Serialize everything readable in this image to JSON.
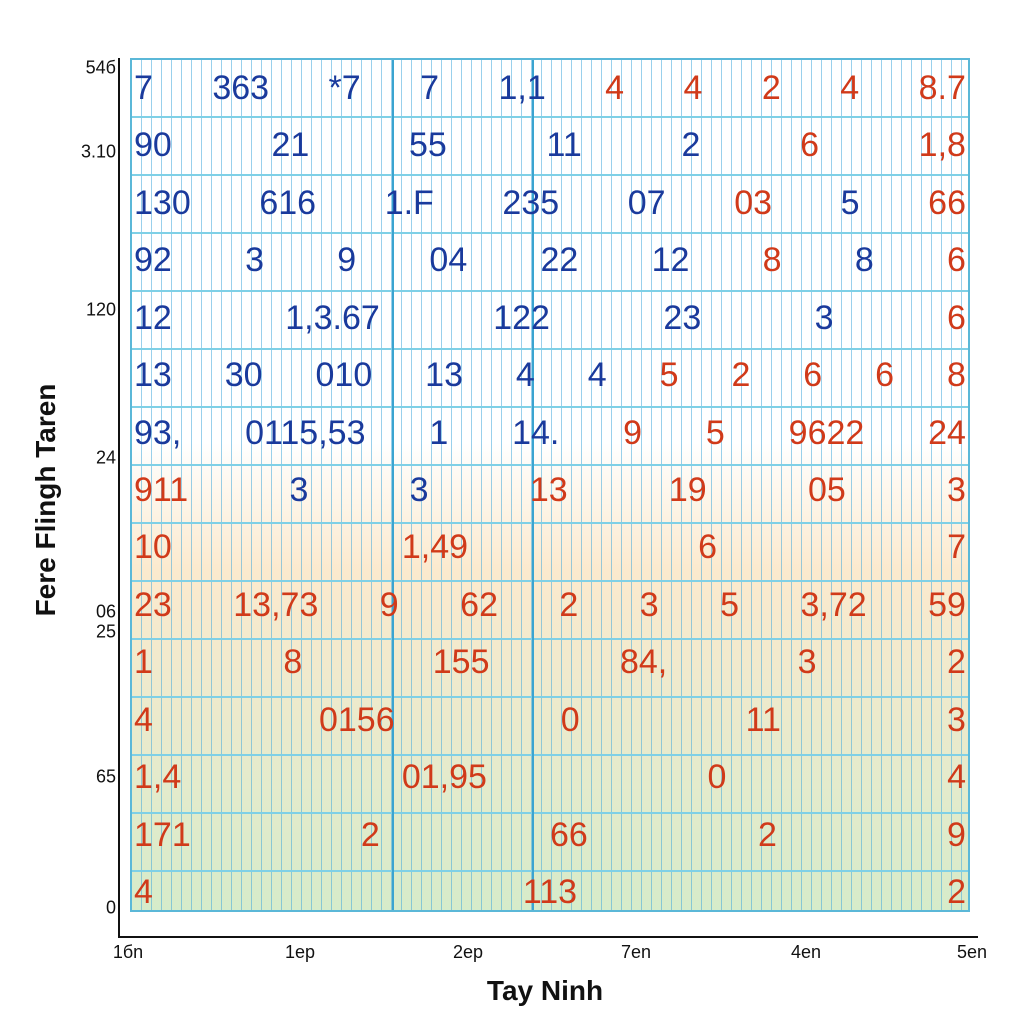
{
  "y_axis": {
    "title": "Fere Flingh Taren",
    "labels": [
      "54б",
      "3.10",
      "120",
      "24",
      "06",
      "25",
      "65",
      "0"
    ]
  },
  "x_axis": {
    "title": "Tay Ninh",
    "labels": [
      "1бn",
      "1ep",
      "2ep",
      "7en",
      "4en",
      "5en"
    ]
  },
  "grid": {
    "rows": [
      [
        {
          "text": "7",
          "color": "#1a3a9c"
        },
        {
          "text": "363",
          "color": "#1a3a9c"
        },
        {
          "text": "*7",
          "color": "#1a3a9c"
        },
        {
          "text": "7",
          "color": "#1a3a9c"
        },
        {
          "text": "1,1",
          "color": "#1a3a9c"
        },
        {
          "text": "4",
          "color": "#d03a1a"
        },
        {
          "text": "4",
          "color": "#d03a1a"
        },
        {
          "text": "2",
          "color": "#d03a1a"
        },
        {
          "text": "4",
          "color": "#d03a1a"
        },
        {
          "text": "8.7",
          "color": "#d03a1a"
        }
      ],
      [
        {
          "text": "90",
          "color": "#1a3a9c"
        },
        {
          "text": "21",
          "color": "#1a3a9c"
        },
        {
          "text": "55",
          "color": "#1a3a9c"
        },
        {
          "text": "11",
          "color": "#1a3a9c"
        },
        {
          "text": "2",
          "color": "#1a3a9c"
        },
        {
          "text": "6",
          "color": "#d03a1a"
        },
        {
          "text": "1,8",
          "color": "#d03a1a"
        }
      ],
      [
        {
          "text": "130",
          "color": "#1a3a9c"
        },
        {
          "text": "616",
          "color": "#1a3a9c"
        },
        {
          "text": "1.F",
          "color": "#1a3a9c"
        },
        {
          "text": "235",
          "color": "#1a3a9c"
        },
        {
          "text": "07",
          "color": "#1a3a9c"
        },
        {
          "text": "03",
          "color": "#d03a1a"
        },
        {
          "text": "5",
          "color": "#1a3a9c"
        },
        {
          "text": "66",
          "color": "#d03a1a"
        }
      ],
      [
        {
          "text": "92",
          "color": "#1a3a9c"
        },
        {
          "text": "3",
          "color": "#1a3a9c"
        },
        {
          "text": "9",
          "color": "#1a3a9c"
        },
        {
          "text": "04",
          "color": "#1a3a9c"
        },
        {
          "text": "22",
          "color": "#1a3a9c"
        },
        {
          "text": "12",
          "color": "#1a3a9c"
        },
        {
          "text": "8",
          "color": "#d03a1a"
        },
        {
          "text": "8",
          "color": "#1a3a9c"
        },
        {
          "text": "6",
          "color": "#d03a1a"
        }
      ],
      [
        {
          "text": "12",
          "color": "#1a3a9c"
        },
        {
          "text": "1,3.67",
          "color": "#1a3a9c"
        },
        {
          "text": "122",
          "color": "#1a3a9c"
        },
        {
          "text": "23",
          "color": "#1a3a9c"
        },
        {
          "text": "3",
          "color": "#1a3a9c"
        },
        {
          "text": "6",
          "color": "#d03a1a"
        }
      ],
      [
        {
          "text": "13",
          "color": "#1a3a9c"
        },
        {
          "text": "30",
          "color": "#1a3a9c"
        },
        {
          "text": "010",
          "color": "#1a3a9c"
        },
        {
          "text": "13",
          "color": "#1a3a9c"
        },
        {
          "text": "4",
          "color": "#1a3a9c"
        },
        {
          "text": "4",
          "color": "#1a3a9c"
        },
        {
          "text": "5",
          "color": "#d03a1a"
        },
        {
          "text": "2",
          "color": "#d03a1a"
        },
        {
          "text": "6",
          "color": "#d03a1a"
        },
        {
          "text": "6",
          "color": "#d03a1a"
        },
        {
          "text": "8",
          "color": "#d03a1a"
        }
      ],
      [
        {
          "text": "93,",
          "color": "#1a3a9c"
        },
        {
          "text": "0115,53",
          "color": "#1a3a9c"
        },
        {
          "text": "1",
          "color": "#1a3a9c"
        },
        {
          "text": "14.",
          "color": "#1a3a9c"
        },
        {
          "text": "9",
          "color": "#d03a1a"
        },
        {
          "text": "5",
          "color": "#d03a1a"
        },
        {
          "text": "9622",
          "color": "#d03a1a"
        },
        {
          "text": "24",
          "color": "#d03a1a"
        }
      ],
      [
        {
          "text": "911",
          "color": "#d03a1a"
        },
        {
          "text": "3",
          "color": "#1a3a9c"
        },
        {
          "text": "3",
          "color": "#1a3a9c"
        },
        {
          "text": "13",
          "color": "#d03a1a"
        },
        {
          "text": "19",
          "color": "#d03a1a"
        },
        {
          "text": "05",
          "color": "#d03a1a"
        },
        {
          "text": "3",
          "color": "#d03a1a"
        }
      ],
      [
        {
          "text": "10",
          "color": "#d03a1a"
        },
        {
          "text": "1,49",
          "color": "#d03a1a"
        },
        {
          "text": "6",
          "color": "#d03a1a"
        },
        {
          "text": "7",
          "color": "#d03a1a"
        }
      ],
      [
        {
          "text": "23",
          "color": "#d03a1a"
        },
        {
          "text": "13,73",
          "color": "#d03a1a"
        },
        {
          "text": "9",
          "color": "#d03a1a"
        },
        {
          "text": "62",
          "color": "#d03a1a"
        },
        {
          "text": "2",
          "color": "#d03a1a"
        },
        {
          "text": "3",
          "color": "#d03a1a"
        },
        {
          "text": "5",
          "color": "#d03a1a"
        },
        {
          "text": "3,72",
          "color": "#d03a1a"
        },
        {
          "text": "59",
          "color": "#d03a1a"
        }
      ],
      [
        {
          "text": "1",
          "color": "#d03a1a"
        },
        {
          "text": "8",
          "color": "#d03a1a"
        },
        {
          "text": "155",
          "color": "#d03a1a"
        },
        {
          "text": "84,",
          "color": "#d03a1a"
        },
        {
          "text": "3",
          "color": "#d03a1a"
        },
        {
          "text": "2",
          "color": "#d03a1a"
        }
      ],
      [
        {
          "text": "4",
          "color": "#d03a1a"
        },
        {
          "text": "0156",
          "color": "#d03a1a"
        },
        {
          "text": "0",
          "color": "#d03a1a"
        },
        {
          "text": "11",
          "color": "#d03a1a"
        },
        {
          "text": "3",
          "color": "#d03a1a"
        }
      ],
      [
        {
          "text": "1,4",
          "color": "#d03a1a"
        },
        {
          "text": "01,95",
          "color": "#d03a1a"
        },
        {
          "text": "0",
          "color": "#d03a1a"
        },
        {
          "text": "4",
          "color": "#d03a1a"
        }
      ],
      [
        {
          "text": "171",
          "color": "#d03a1a"
        },
        {
          "text": "2",
          "color": "#d03a1a"
        },
        {
          "text": "66",
          "color": "#d03a1a"
        },
        {
          "text": "2",
          "color": "#d03a1a"
        },
        {
          "text": "9",
          "color": "#d03a1a"
        }
      ],
      [
        {
          "text": "4",
          "color": "#d03a1a"
        },
        {
          "text": "113",
          "color": "#d03a1a"
        },
        {
          "text": "2",
          "color": "#d03a1a"
        }
      ]
    ]
  }
}
